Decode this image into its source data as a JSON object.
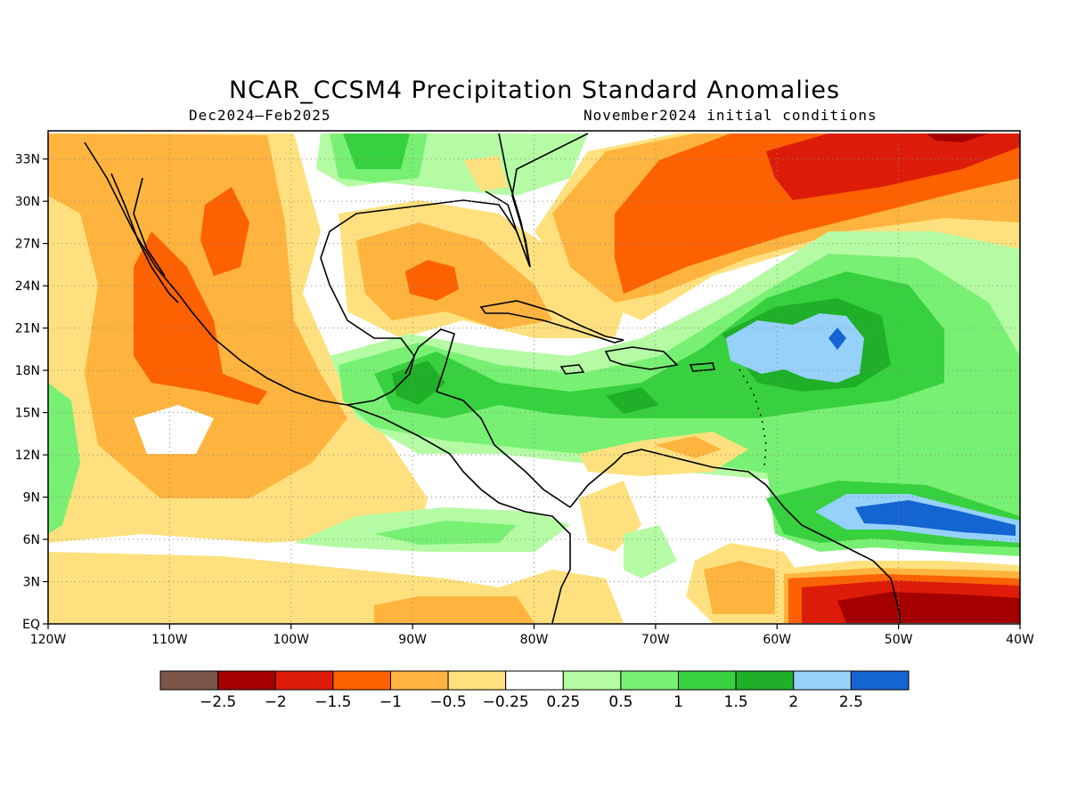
{
  "title": "NCAR_CCSM4 Precipitation Standard Anomalies",
  "subtitle_left": "Dec2024–Feb2025",
  "subtitle_right": "November2024 initial conditions",
  "map": {
    "lon_range": [
      -120,
      -40
    ],
    "lat_range": [
      0,
      35
    ],
    "grid": "dotted",
    "lon_ticks": [
      {
        "value": -120,
        "label": "120W"
      },
      {
        "value": -110,
        "label": "110W"
      },
      {
        "value": -100,
        "label": "100W"
      },
      {
        "value": -90,
        "label": "90W"
      },
      {
        "value": -80,
        "label": "80W"
      },
      {
        "value": -70,
        "label": "70W"
      },
      {
        "value": -60,
        "label": "60W"
      },
      {
        "value": -50,
        "label": "50W"
      },
      {
        "value": -40,
        "label": "40W"
      }
    ],
    "lat_ticks": [
      {
        "value": 0,
        "label": "EQ"
      },
      {
        "value": 3,
        "label": "3N"
      },
      {
        "value": 6,
        "label": "6N"
      },
      {
        "value": 9,
        "label": "9N"
      },
      {
        "value": 12,
        "label": "12N"
      },
      {
        "value": 15,
        "label": "15N"
      },
      {
        "value": 18,
        "label": "18N"
      },
      {
        "value": 21,
        "label": "21N"
      },
      {
        "value": 24,
        "label": "24N"
      },
      {
        "value": 27,
        "label": "27N"
      },
      {
        "value": 30,
        "label": "30N"
      },
      {
        "value": 33,
        "label": "33N"
      }
    ]
  },
  "colorbar": {
    "colors": [
      "#7a5548",
      "#a40000",
      "#dc1c08",
      "#fe6100",
      "#feb43e",
      "#fee17e",
      "#ffffff",
      "#b4fba4",
      "#78f073",
      "#37d13f",
      "#1faf28",
      "#96d1fa",
      "#1464d2"
    ],
    "labels": [
      "−2.5",
      "−2",
      "−1.5",
      "−1",
      "−0.5",
      "−0.25",
      "0.25",
      "0.5",
      "1",
      "1.5",
      "2",
      "2.5"
    ]
  }
}
